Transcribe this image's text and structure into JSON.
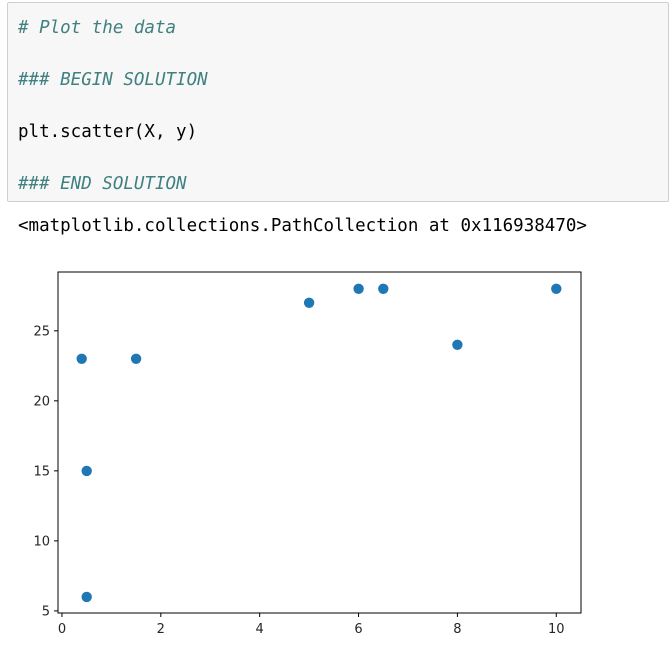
{
  "cell": {
    "lines": [
      {
        "text": "# Plot the data",
        "kind": "comment"
      },
      {
        "text": "### BEGIN SOLUTION",
        "kind": "comment"
      },
      {
        "text": "plt.scatter(X, y)",
        "kind": "code"
      },
      {
        "text": "### END SOLUTION",
        "kind": "comment"
      }
    ]
  },
  "output": {
    "repr": "<matplotlib.collections.PathCollection at 0x116938470>"
  },
  "colors": {
    "comment": "#408080",
    "cell_background": "#f7f7f7",
    "cell_border": "#cfcfcf",
    "marker": "#1f77b4"
  },
  "chart_data": {
    "type": "scatter",
    "title": "",
    "xlabel": "",
    "ylabel": "",
    "x": [
      0.4,
      0.5,
      0.5,
      1.5,
      5,
      6,
      6.5,
      8,
      10
    ],
    "y": [
      23,
      15,
      6,
      23,
      27,
      28,
      28,
      24,
      28
    ],
    "xlim": [
      -0.08,
      10.5
    ],
    "ylim": [
      4.85,
      29.2
    ],
    "xticks": [
      0,
      2,
      4,
      6,
      8,
      10
    ],
    "yticks": [
      5,
      10,
      15,
      20,
      25
    ],
    "grid": false
  }
}
